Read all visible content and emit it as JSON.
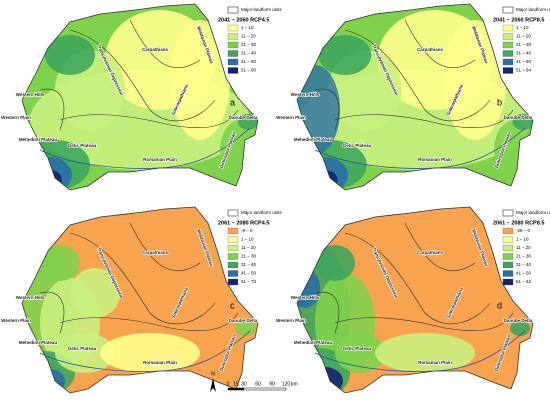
{
  "panels": [
    {
      "letter": "a",
      "legend": {
        "outline_label": "Major landform units",
        "title": "2041 – 2060 RCP4.5",
        "items": [
          {
            "label": "1 – 10",
            "color": "#ffff8c"
          },
          {
            "label": "11 – 20",
            "color": "#c9ef7e"
          },
          {
            "label": "21 – 30",
            "color": "#7fd14c"
          },
          {
            "label": "31 – 40",
            "color": "#3fa65c"
          },
          {
            "label": "41 – 50",
            "color": "#2a6fa8"
          },
          {
            "label": "51 – 90",
            "color": "#14256e"
          }
        ]
      }
    },
    {
      "letter": "b",
      "legend": {
        "outline_label": "Major landform units",
        "title": "2041 – 2060 RCP8.5",
        "items": [
          {
            "label": "1 – 10",
            "color": "#ffff8c"
          },
          {
            "label": "11 – 20",
            "color": "#c9ef7e"
          },
          {
            "label": "21 – 30",
            "color": "#7fd14c"
          },
          {
            "label": "31 – 40",
            "color": "#3fa65c"
          },
          {
            "label": "41 – 50",
            "color": "#2a6fa8"
          },
          {
            "label": "51 – 64",
            "color": "#14256e"
          }
        ]
      }
    },
    {
      "letter": "c",
      "legend": {
        "outline_label": "Major landform units",
        "title": "2061 – 2080 RCP4.5",
        "items": [
          {
            "label": "-9 – 0",
            "color": "#f7a350"
          },
          {
            "label": "1 – 10",
            "color": "#ffff8c"
          },
          {
            "label": "11 – 20",
            "color": "#c9ef7e"
          },
          {
            "label": "21 – 30",
            "color": "#7fd14c"
          },
          {
            "label": "31 – 40",
            "color": "#3fa65c"
          },
          {
            "label": "41 – 50",
            "color": "#2a6fa8"
          },
          {
            "label": "51 – 73",
            "color": "#14256e"
          }
        ]
      }
    },
    {
      "letter": "d",
      "legend": {
        "outline_label": "Major landform units",
        "title": "2061 – 2080 RCP8.5",
        "items": [
          {
            "label": "-28 – 0",
            "color": "#f7a350"
          },
          {
            "label": "1 – 10",
            "color": "#ffff8c"
          },
          {
            "label": "11 – 20",
            "color": "#c9ef7e"
          },
          {
            "label": "21 – 30",
            "color": "#7fd14c"
          },
          {
            "label": "31 – 40",
            "color": "#3fa65c"
          },
          {
            "label": "41 – 50",
            "color": "#2a6fa8"
          },
          {
            "label": "51 – 62",
            "color": "#14256e"
          }
        ]
      }
    }
  ],
  "landform_labels": [
    "Carpathians",
    "Western Hills",
    "Western Plain",
    "Mehedinti Plateau",
    "Getic Plateau",
    "Romanian Plain",
    "Danube Delta",
    "Dobrogea Plateau",
    "Moldavian Plateau",
    "Transylvanian Depression",
    "Subcarpathians"
  ],
  "scale": {
    "labels": [
      "0",
      "15",
      "30",
      "60",
      "90",
      "120"
    ],
    "unit": "km",
    "north": "N"
  }
}
